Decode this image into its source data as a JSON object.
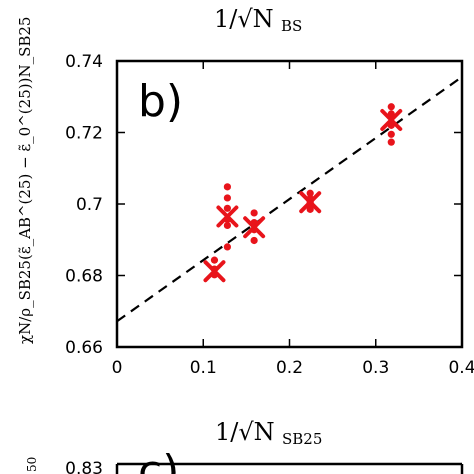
{
  "page": {
    "top_axis_label": "1/√N",
    "top_axis_label_sub": "BS"
  },
  "chart_data": [
    {
      "type": "scatter",
      "panel_label": "b)",
      "xlabel": "1/√N",
      "xlabel_sub": "SB25",
      "ylabel": "χN/ρ_SB25(ε̃_AB^(25) − ε̃_0^(25))N_SB25",
      "xlim": [
        0,
        0.4
      ],
      "ylim": [
        0.66,
        0.74
      ],
      "x_ticks": [
        "0",
        "0.1",
        "0.2",
        "0.3",
        "0.4"
      ],
      "y_ticks": [
        "0.66",
        "0.68",
        "0.7",
        "0.72",
        "0.74"
      ],
      "grid": false,
      "colors": {
        "points": "#e8141b",
        "fit_line": "#000000",
        "frame": "#000000"
      },
      "series": [
        {
          "marker": "dot",
          "points": [
            [
              0.113,
              0.6843
            ],
            [
              0.113,
              0.6818
            ],
            [
              0.113,
              0.6802
            ],
            [
              0.128,
              0.7048
            ],
            [
              0.128,
              0.7017
            ],
            [
              0.128,
              0.6988
            ],
            [
              0.128,
              0.6957
            ],
            [
              0.128,
              0.694
            ],
            [
              0.128,
              0.688
            ],
            [
              0.159,
              0.6975
            ],
            [
              0.159,
              0.6948
            ],
            [
              0.159,
              0.6928
            ],
            [
              0.159,
              0.6898
            ],
            [
              0.224,
              0.703
            ],
            [
              0.224,
              0.7015
            ],
            [
              0.224,
              0.7005
            ],
            [
              0.224,
              0.6995
            ],
            [
              0.224,
              0.6985
            ],
            [
              0.318,
              0.7272
            ],
            [
              0.318,
              0.7252
            ],
            [
              0.318,
              0.722
            ],
            [
              0.318,
              0.7195
            ],
            [
              0.318,
              0.7173
            ]
          ]
        },
        {
          "marker": "x",
          "points": [
            [
              0.113,
              0.6812
            ],
            [
              0.128,
              0.6965
            ],
            [
              0.159,
              0.6935
            ],
            [
              0.224,
              0.7005
            ],
            [
              0.318,
              0.7235
            ]
          ]
        }
      ],
      "fit_line": {
        "style": "dashed",
        "intercept": 0.6672,
        "slope": 0.1709
      }
    },
    {
      "type": "scatter",
      "panel_label": "c)",
      "y_ticks": [
        "0.83"
      ],
      "ylabel_fragment": "50"
    }
  ]
}
